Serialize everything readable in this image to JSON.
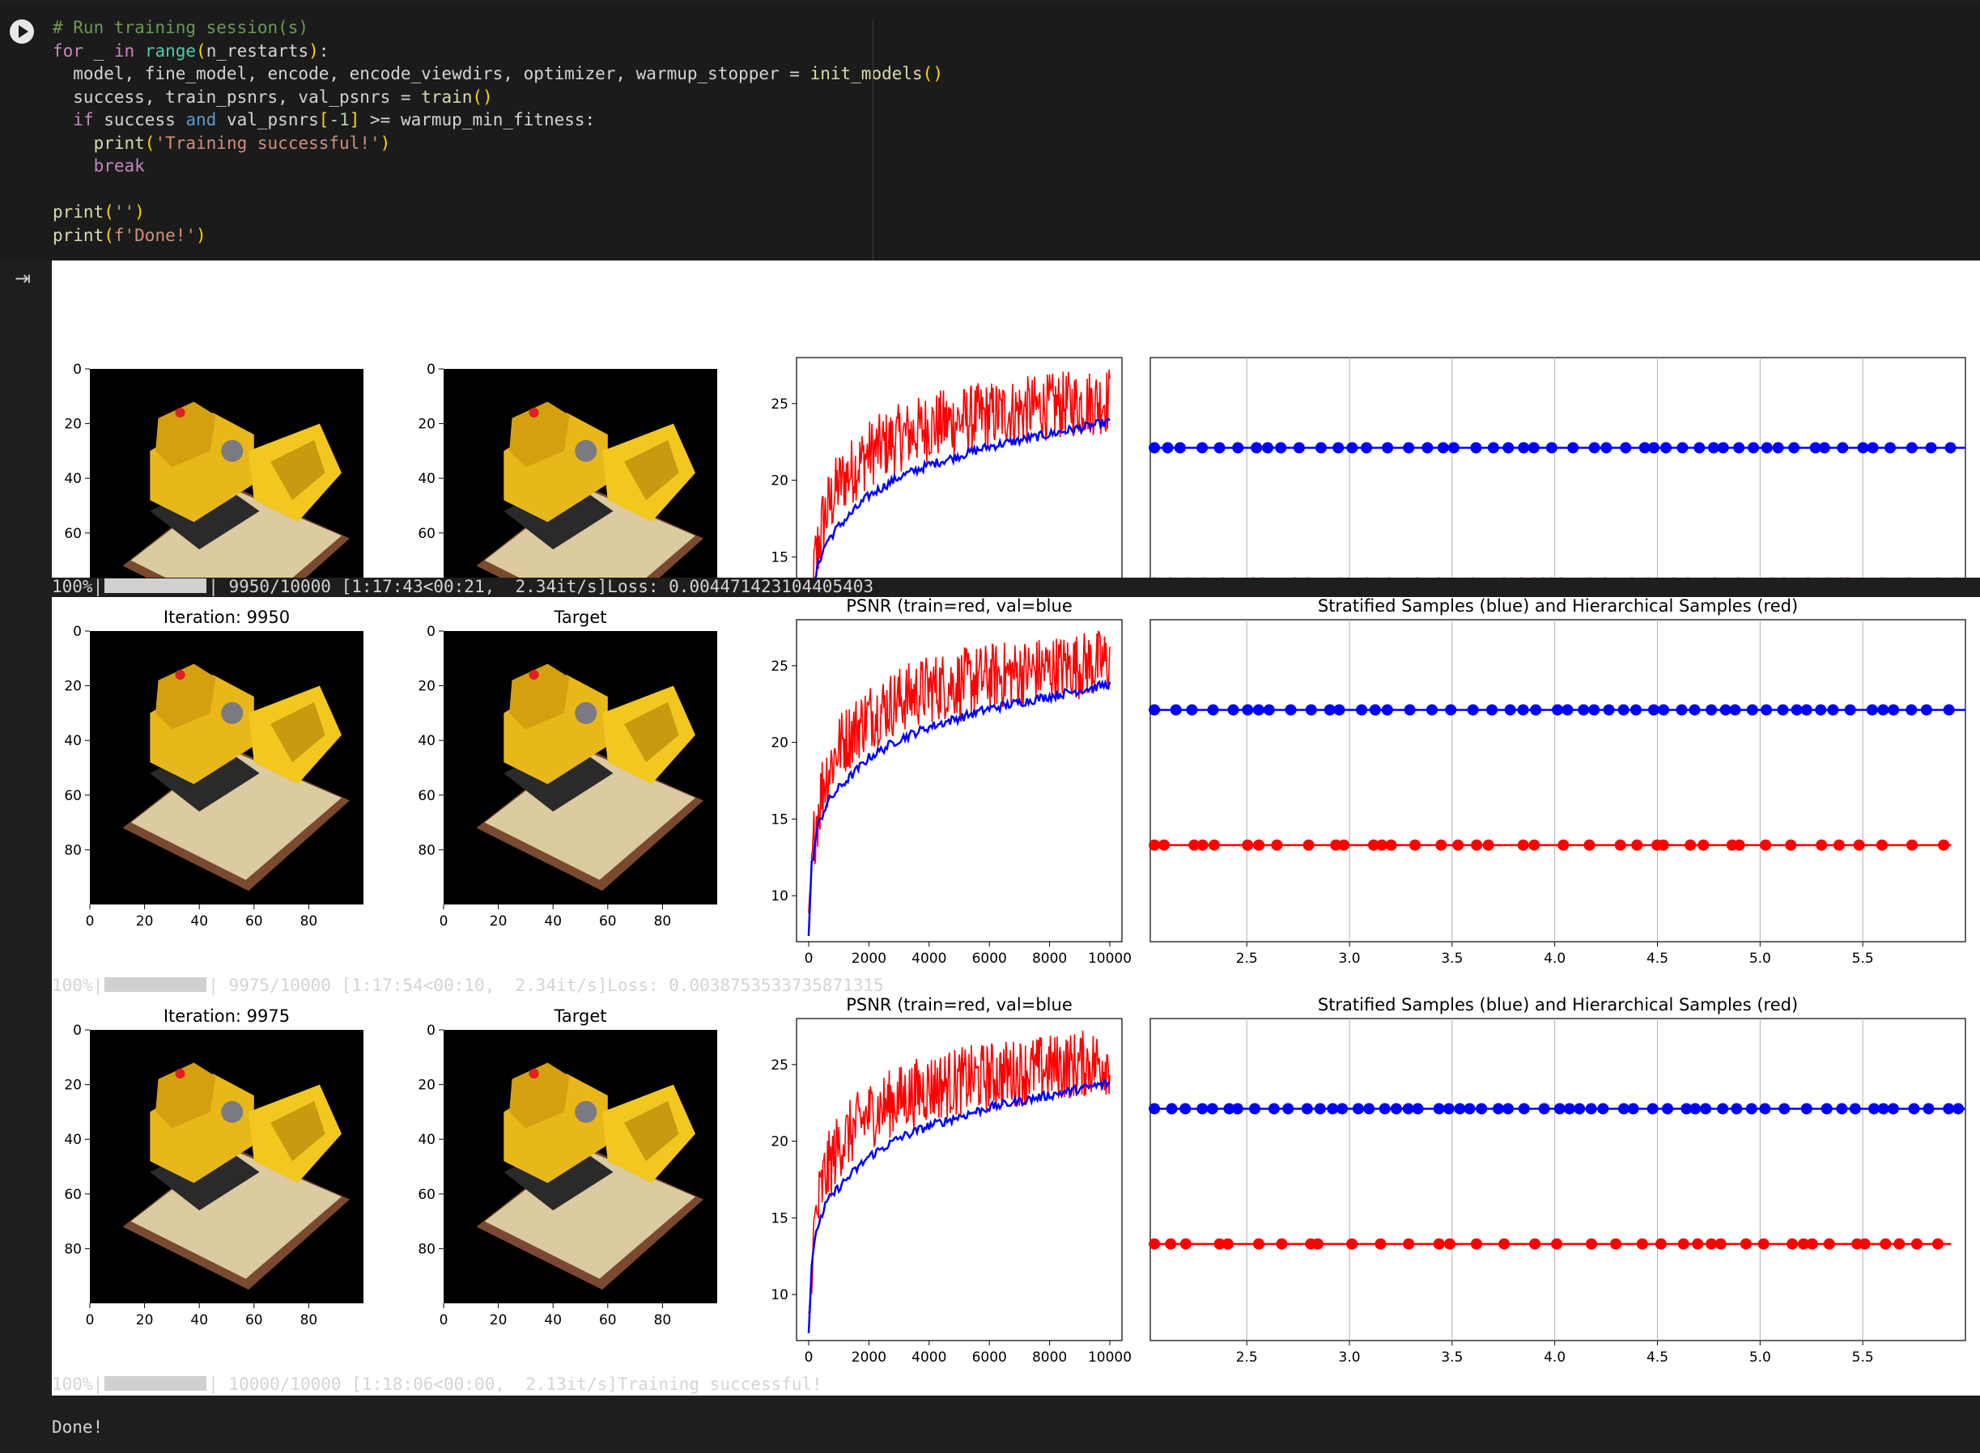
{
  "code_cell": {
    "lines": [
      "# Run training session(s)",
      "for _ in range(n_restarts):",
      "  model, fine_model, encode, encode_viewdirs, optimizer, warmup_stopper = init_models()",
      "  success, train_psnrs, val_psnrs = train()",
      "  if success and val_psnrs[-1] >= warmup_min_fitness:",
      "    print('Training successful!')",
      "    break",
      "",
      "print('')",
      "print(f'Done!')"
    ]
  },
  "figures": [
    {
      "iteration_title": "",
      "target_title": "",
      "psnr_title": "",
      "samples_title": ""
    },
    {
      "iteration_title": "Iteration: 9950",
      "target_title": "Target",
      "psnr_title": "PSNR (train=red, val=blue",
      "samples_title": "Stratified  Samples (blue) and Hierarchical Samples (red)"
    },
    {
      "iteration_title": "Iteration: 9975",
      "target_title": "Target",
      "psnr_title": "PSNR (train=red, val=blue",
      "samples_title": "Stratified  Samples (blue) and Hierarchical Samples (red)"
    }
  ],
  "progress_lines": [
    {
      "pct": "100%|",
      "rest": "| 9950/10000 [1:17:43<00:21,  2.34it/s]Loss: 0.004471423104405403",
      "fill": 1.0
    },
    {
      "pct": "100%|",
      "rest": "| 9975/10000 [1:17:54<00:10,  2.34it/s]Loss: 0.0038753533735871315",
      "fill": 1.0
    },
    {
      "pct": "100%|",
      "rest": "| 10000/10000 [1:18:06<00:00,  2.13it/s]Training successful!",
      "fill": 1.0
    }
  ],
  "done_text": "Done!",
  "chart_data": [
    {
      "type": "image",
      "name": "rendered-image",
      "xticks": [
        0,
        20,
        40,
        60,
        80
      ],
      "yticks": [
        0,
        20,
        40,
        60,
        80
      ],
      "xlim": [
        0,
        100
      ],
      "ylim": [
        100,
        0
      ]
    },
    {
      "type": "line",
      "name": "psnr-curve",
      "xticks": [
        0,
        2000,
        4000,
        6000,
        8000,
        10000
      ],
      "yticks": [
        10,
        15,
        20,
        25
      ],
      "xlim": [
        0,
        10000
      ],
      "ylim": [
        7,
        28
      ],
      "series": [
        {
          "color": "#ff0000",
          "x": [
            0,
            200,
            500,
            1000,
            2000,
            3000,
            4000,
            6000,
            8000,
            10000
          ],
          "y_low": [
            8,
            12,
            15,
            17.5,
            19.5,
            20.5,
            21.2,
            22,
            22.6,
            23
          ],
          "y_high": [
            9,
            17,
            20,
            22,
            24,
            25,
            25.8,
            26.5,
            27,
            27.5
          ]
        },
        {
          "color": "#0000ff",
          "x": [
            0,
            100,
            300,
            600,
            1000,
            2000,
            3000,
            4000,
            6000,
            8000,
            10000
          ],
          "y": [
            7.5,
            12,
            14.5,
            16,
            17,
            19,
            20.2,
            21,
            22.2,
            23,
            23.8
          ]
        }
      ]
    },
    {
      "type": "scatter",
      "name": "samples-plot",
      "xticks": [
        2.5,
        3.0,
        3.5,
        4.0,
        4.5,
        5.0,
        5.5
      ],
      "xlim": [
        2.03,
        6.0
      ],
      "grid": true,
      "series": [
        {
          "color": "#0000ff",
          "level": 0.72
        },
        {
          "color": "#ff0000",
          "level": 0.3
        }
      ]
    }
  ]
}
